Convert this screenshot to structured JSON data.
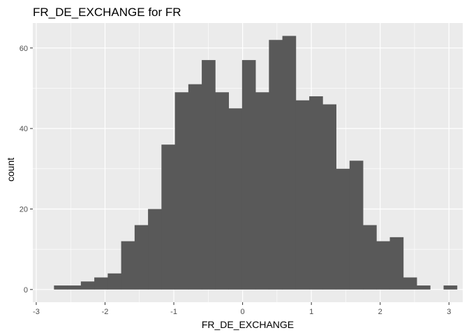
{
  "chart_data": {
    "type": "bar",
    "title": "FR_DE_EXCHANGE  for FR",
    "xlabel": "FR_DE_EXCHANGE",
    "ylabel": "count",
    "xlim": [
      -3.05,
      3.2
    ],
    "ylim": [
      -3.15,
      66.2
    ],
    "x_ticks": [
      -3,
      -2,
      -1,
      0,
      1,
      2,
      3
    ],
    "x_tick_labels": [
      "-3",
      "-2",
      "-1",
      "0",
      "1",
      "2",
      "3"
    ],
    "y_ticks": [
      0,
      20,
      40,
      60
    ],
    "y_tick_labels": [
      "0",
      "20",
      "40",
      "60"
    ],
    "bin_width": 0.1953,
    "bin_start": -2.742,
    "values": [
      1,
      1,
      2,
      3,
      4,
      12,
      16,
      20,
      36,
      49,
      51,
      57,
      49,
      45,
      57,
      49,
      62,
      63,
      47,
      48,
      46,
      30,
      32,
      16,
      12,
      13,
      3,
      1,
      0,
      1
    ],
    "grid": true,
    "legend": "none",
    "colors": {
      "panel_bg": "#ebebeb",
      "grid_major": "#ffffff",
      "bar_fill": "#595959",
      "text": "#000000",
      "tick_text": "#4d4d4d",
      "tick_mark": "#333333"
    }
  }
}
